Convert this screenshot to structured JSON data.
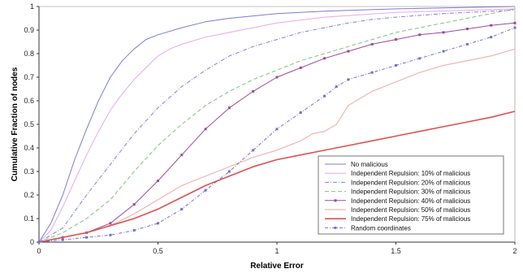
{
  "chart_data": {
    "type": "line",
    "xlabel": "Relative Error",
    "ylabel": "Cumulative Fraction of nodes",
    "xlim": [
      0,
      2
    ],
    "ylim": [
      0,
      1
    ],
    "xticks": [
      0,
      0.5,
      1,
      1.5,
      2
    ],
    "xtick_labels": [
      "0",
      "0.5",
      "1",
      "1.5",
      "2"
    ],
    "yticks": [
      0,
      0.1,
      0.2,
      0.3,
      0.4,
      0.5,
      0.6,
      0.7,
      0.8,
      0.9,
      1
    ],
    "ytick_labels": [
      "0",
      "0.1",
      "0.2",
      "0.3",
      "0.4",
      "0.5",
      "0.6",
      "0.7",
      "0.8",
      "0.9",
      "1"
    ],
    "grid": false,
    "legend_position": "bottom-right",
    "series": [
      {
        "name": "No malicious",
        "color": "#7b7bd6",
        "dash": "",
        "marker": false,
        "width": 1,
        "points": [
          [
            0,
            0
          ],
          [
            0.05,
            0.08
          ],
          [
            0.1,
            0.2
          ],
          [
            0.15,
            0.35
          ],
          [
            0.2,
            0.48
          ],
          [
            0.25,
            0.6
          ],
          [
            0.3,
            0.7
          ],
          [
            0.35,
            0.77
          ],
          [
            0.4,
            0.82
          ],
          [
            0.45,
            0.86
          ],
          [
            0.5,
            0.88
          ],
          [
            0.6,
            0.91
          ],
          [
            0.7,
            0.935
          ],
          [
            0.8,
            0.95
          ],
          [
            0.9,
            0.96
          ],
          [
            1.0,
            0.97
          ],
          [
            1.2,
            0.98
          ],
          [
            1.5,
            0.99
          ],
          [
            2.0,
            1.0
          ]
        ]
      },
      {
        "name": "Independent Repulsion: 10% of malicious",
        "color": "#e7a8e7",
        "dash": "",
        "marker": false,
        "width": 1,
        "points": [
          [
            0,
            0
          ],
          [
            0.05,
            0.05
          ],
          [
            0.1,
            0.15
          ],
          [
            0.15,
            0.26
          ],
          [
            0.2,
            0.37
          ],
          [
            0.25,
            0.47
          ],
          [
            0.3,
            0.56
          ],
          [
            0.35,
            0.63
          ],
          [
            0.4,
            0.69
          ],
          [
            0.45,
            0.74
          ],
          [
            0.5,
            0.79
          ],
          [
            0.55,
            0.82
          ],
          [
            0.6,
            0.84
          ],
          [
            0.7,
            0.87
          ],
          [
            0.8,
            0.89
          ],
          [
            0.9,
            0.91
          ],
          [
            1.0,
            0.93
          ],
          [
            1.2,
            0.955
          ],
          [
            1.5,
            0.975
          ],
          [
            2.0,
            0.99
          ]
        ]
      },
      {
        "name": "Independent Repulsion: 20% of malicious",
        "color": "#8080dd",
        "dash": "5,2,1,2",
        "marker": false,
        "width": 1,
        "points": [
          [
            0,
            0
          ],
          [
            0.1,
            0.06
          ],
          [
            0.2,
            0.2
          ],
          [
            0.3,
            0.33
          ],
          [
            0.4,
            0.46
          ],
          [
            0.5,
            0.57
          ],
          [
            0.6,
            0.66
          ],
          [
            0.7,
            0.73
          ],
          [
            0.8,
            0.79
          ],
          [
            0.9,
            0.83
          ],
          [
            1.0,
            0.86
          ],
          [
            1.1,
            0.89
          ],
          [
            1.2,
            0.91
          ],
          [
            1.3,
            0.93
          ],
          [
            1.4,
            0.945
          ],
          [
            1.5,
            0.955
          ],
          [
            1.7,
            0.97
          ],
          [
            2.0,
            0.985
          ]
        ]
      },
      {
        "name": "Independent Repulsion: 30% of malicious",
        "color": "#7fc27f",
        "dash": "5,3",
        "marker": false,
        "width": 1,
        "points": [
          [
            0,
            0
          ],
          [
            0.1,
            0.04
          ],
          [
            0.2,
            0.1
          ],
          [
            0.3,
            0.18
          ],
          [
            0.4,
            0.3
          ],
          [
            0.5,
            0.41
          ],
          [
            0.6,
            0.5
          ],
          [
            0.7,
            0.58
          ],
          [
            0.8,
            0.64
          ],
          [
            0.9,
            0.69
          ],
          [
            1.0,
            0.73
          ],
          [
            1.1,
            0.77
          ],
          [
            1.2,
            0.8
          ],
          [
            1.3,
            0.83
          ],
          [
            1.4,
            0.86
          ],
          [
            1.5,
            0.89
          ],
          [
            1.6,
            0.91
          ],
          [
            1.7,
            0.93
          ],
          [
            1.8,
            0.95
          ],
          [
            2.0,
            0.99
          ]
        ]
      },
      {
        "name": "Independent Repulsion: 40% of malicious",
        "color": "#9a4a9a",
        "dash": "",
        "marker": true,
        "width": 1,
        "points": [
          [
            0,
            0
          ],
          [
            0.1,
            0.02
          ],
          [
            0.2,
            0.04
          ],
          [
            0.3,
            0.08
          ],
          [
            0.4,
            0.16
          ],
          [
            0.5,
            0.26
          ],
          [
            0.6,
            0.37
          ],
          [
            0.7,
            0.48
          ],
          [
            0.8,
            0.57
          ],
          [
            0.9,
            0.64
          ],
          [
            1.0,
            0.7
          ],
          [
            1.1,
            0.74
          ],
          [
            1.2,
            0.78
          ],
          [
            1.3,
            0.81
          ],
          [
            1.4,
            0.84
          ],
          [
            1.5,
            0.86
          ],
          [
            1.6,
            0.88
          ],
          [
            1.7,
            0.89
          ],
          [
            1.8,
            0.905
          ],
          [
            1.9,
            0.92
          ],
          [
            2.0,
            0.93
          ]
        ]
      },
      {
        "name": "Independent Repulsion: 50% of malicious",
        "color": "#f2b8b8",
        "dash": "",
        "marker": false,
        "width": 1.3,
        "points": [
          [
            0,
            0
          ],
          [
            0.1,
            0.02
          ],
          [
            0.2,
            0.04
          ],
          [
            0.3,
            0.07
          ],
          [
            0.4,
            0.12
          ],
          [
            0.5,
            0.18
          ],
          [
            0.6,
            0.24
          ],
          [
            0.7,
            0.28
          ],
          [
            0.8,
            0.32
          ],
          [
            0.9,
            0.36
          ],
          [
            1.0,
            0.39
          ],
          [
            1.1,
            0.43
          ],
          [
            1.15,
            0.46
          ],
          [
            1.2,
            0.47
          ],
          [
            1.25,
            0.5
          ],
          [
            1.3,
            0.58
          ],
          [
            1.4,
            0.64
          ],
          [
            1.5,
            0.68
          ],
          [
            1.6,
            0.72
          ],
          [
            1.7,
            0.75
          ],
          [
            1.8,
            0.77
          ],
          [
            1.9,
            0.79
          ],
          [
            2.0,
            0.82
          ]
        ]
      },
      {
        "name": "Independent Repulsion: 75% of malicious",
        "color": "#e05050",
        "dash": "",
        "marker": false,
        "width": 1.6,
        "points": [
          [
            0,
            0
          ],
          [
            0.1,
            0.02
          ],
          [
            0.2,
            0.04
          ],
          [
            0.3,
            0.07
          ],
          [
            0.4,
            0.1
          ],
          [
            0.5,
            0.14
          ],
          [
            0.6,
            0.19
          ],
          [
            0.7,
            0.24
          ],
          [
            0.8,
            0.28
          ],
          [
            0.9,
            0.32
          ],
          [
            1.0,
            0.35
          ],
          [
            1.1,
            0.37
          ],
          [
            1.2,
            0.39
          ],
          [
            1.3,
            0.41
          ],
          [
            1.4,
            0.43
          ],
          [
            1.5,
            0.45
          ],
          [
            1.6,
            0.47
          ],
          [
            1.7,
            0.49
          ],
          [
            1.8,
            0.51
          ],
          [
            1.9,
            0.53
          ],
          [
            2.0,
            0.555
          ]
        ]
      },
      {
        "name": "Random coordinates",
        "color": "#7070d0",
        "dash": "4,2,1,2",
        "marker": true,
        "width": 1,
        "points": [
          [
            0,
            0
          ],
          [
            0.1,
            0.01
          ],
          [
            0.2,
            0.02
          ],
          [
            0.3,
            0.03
          ],
          [
            0.4,
            0.05
          ],
          [
            0.5,
            0.08
          ],
          [
            0.6,
            0.14
          ],
          [
            0.7,
            0.22
          ],
          [
            0.8,
            0.3
          ],
          [
            0.9,
            0.39
          ],
          [
            1.0,
            0.48
          ],
          [
            1.1,
            0.55
          ],
          [
            1.2,
            0.62
          ],
          [
            1.25,
            0.66
          ],
          [
            1.3,
            0.69
          ],
          [
            1.4,
            0.72
          ],
          [
            1.5,
            0.75
          ],
          [
            1.6,
            0.78
          ],
          [
            1.7,
            0.81
          ],
          [
            1.8,
            0.84
          ],
          [
            1.9,
            0.87
          ],
          [
            2.0,
            0.91
          ]
        ]
      }
    ]
  }
}
